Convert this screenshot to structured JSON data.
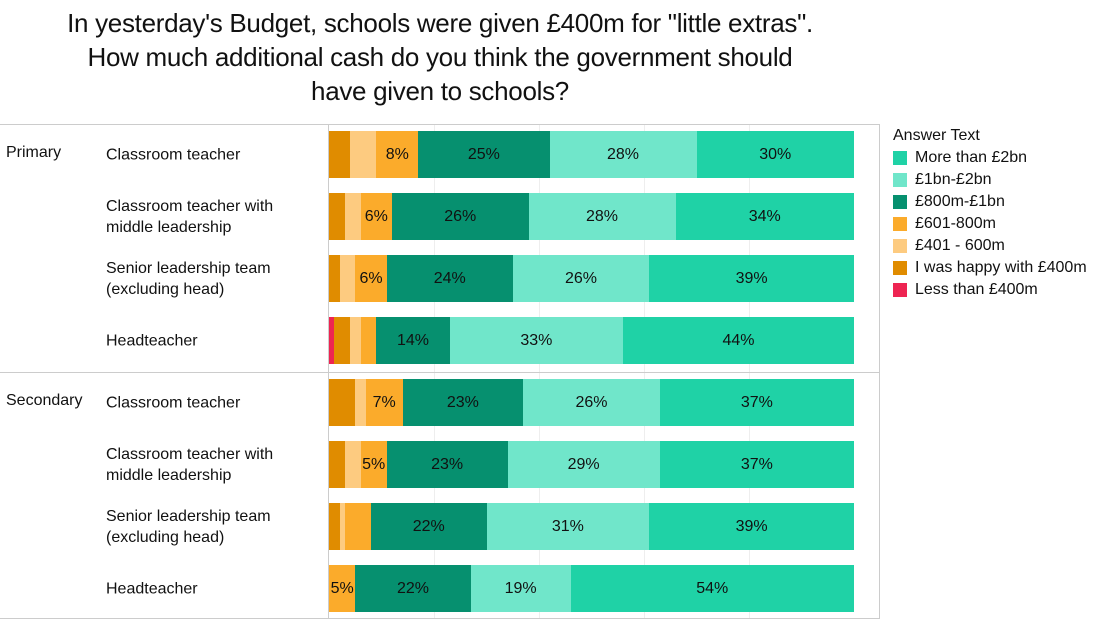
{
  "title": "In yesterday's Budget, schools were given £400m for \"little extras\".\nHow much additional cash do you think the government should\nhave given to schools?",
  "chart_data": {
    "type": "bar",
    "orientation": "horizontal-stacked-100",
    "title": "In yesterday's Budget, schools were given £400m for \"little extras\". How much additional cash do you think the government should have given to schools?",
    "legend_title": "Answer Text",
    "legend_position": "right",
    "series": [
      {
        "name": "Less than £400m",
        "color": "#ee2452"
      },
      {
        "name": "I was happy with £400m",
        "color": "#e08c00"
      },
      {
        "name": "£401 - 600m",
        "color": "#fdcb80"
      },
      {
        "name": "£601-800m",
        "color": "#fbab2b"
      },
      {
        "name": "£800m-£1bn",
        "color": "#06906f"
      },
      {
        "name": "£1bn-£2bn",
        "color": "#70e6ca"
      },
      {
        "name": "More than £2bn",
        "color": "#1fd2a6"
      }
    ],
    "groups": [
      {
        "name": "Primary",
        "rows": [
          {
            "label": "Classroom teacher",
            "values": [
              0,
              4,
              5,
              8,
              25,
              28,
              30
            ],
            "labels": [
              "",
              "",
              "",
              "8%",
              "25%",
              "28%",
              "30%"
            ]
          },
          {
            "label": "Classroom teacher with\nmiddle leadership",
            "values": [
              0,
              3,
              3,
              6,
              26,
              28,
              34
            ],
            "labels": [
              "",
              "",
              "",
              "6%",
              "26%",
              "28%",
              "34%"
            ]
          },
          {
            "label": "Senior leadership team\n(excluding head)",
            "values": [
              0,
              2,
              3,
              6,
              24,
              26,
              39
            ],
            "labels": [
              "",
              "",
              "",
              "6%",
              "24%",
              "26%",
              "39%"
            ]
          },
          {
            "label": "Headteacher",
            "values": [
              1,
              3,
              2,
              3,
              14,
              33,
              44
            ],
            "labels": [
              "",
              "",
              "",
              "",
              "14%",
              "33%",
              "44%"
            ]
          }
        ]
      },
      {
        "name": "Secondary",
        "rows": [
          {
            "label": "Classroom teacher",
            "values": [
              0,
              5,
              2,
              7,
              23,
              26,
              37
            ],
            "labels": [
              "",
              "",
              "",
              "7%",
              "23%",
              "26%",
              "37%"
            ]
          },
          {
            "label": "Classroom teacher with\nmiddle leadership",
            "values": [
              0,
              3,
              3,
              5,
              23,
              29,
              37
            ],
            "labels": [
              "",
              "",
              "",
              "5%",
              "23%",
              "29%",
              "37%"
            ]
          },
          {
            "label": "Senior leadership team\n(excluding head)",
            "values": [
              0,
              2,
              1,
              5,
              22,
              31,
              39
            ],
            "labels": [
              "",
              "",
              "",
              "",
              "22%",
              "31%",
              "39%"
            ]
          },
          {
            "label": "Headteacher",
            "values": [
              0,
              0,
              0,
              5,
              22,
              19,
              54
            ],
            "labels": [
              "",
              "",
              "",
              "5%",
              "22%",
              "19%",
              "54%"
            ]
          }
        ]
      }
    ],
    "xlim": [
      0,
      100
    ]
  }
}
